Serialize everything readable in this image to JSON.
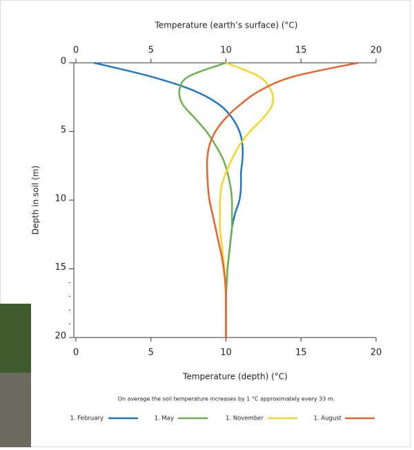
{
  "chart_data": {
    "type": "line",
    "title": "Temperature (earth’s surface) (°C)",
    "xlabel": "Temperature (depth) (°C)",
    "ylabel": "Depth in soil (m)",
    "note": "On average the soil temperature increases by 1 °C approximately every 33 m.",
    "y": [
      0,
      1,
      2,
      3,
      4,
      5,
      6,
      7,
      8,
      9,
      10,
      11,
      12,
      13,
      14,
      15,
      16,
      17,
      18,
      19,
      20
    ],
    "ylim": [
      0,
      20
    ],
    "y_inverted": true,
    "yticks": [
      0,
      5,
      10,
      15,
      20
    ],
    "yminorticks": [
      16,
      17,
      18,
      19
    ],
    "xlim": [
      0,
      20
    ],
    "xticks": [
      0,
      5,
      10,
      15,
      20
    ],
    "x2lim": [
      0,
      20
    ],
    "x2ticks": [
      0,
      5,
      10,
      15,
      20
    ],
    "series": [
      {
        "name": "1. February",
        "color": "#1f78c1",
        "values": [
          1.2,
          5,
          7.8,
          9.5,
          10.4,
          10.9,
          11.1,
          11.1,
          11.0,
          11.0,
          10.9,
          10.6,
          10.4,
          10.3,
          10.2,
          10.1,
          10.05,
          10,
          10,
          10,
          10
        ]
      },
      {
        "name": "1. May",
        "color": "#6ab04c",
        "values": [
          10,
          7.5,
          6.9,
          7.1,
          7.9,
          8.7,
          9.3,
          9.8,
          10.1,
          10.3,
          10.4,
          10.4,
          10.4,
          10.3,
          10.2,
          10.1,
          10.05,
          10,
          10,
          10,
          10
        ]
      },
      {
        "name": "1. November",
        "color": "#f7d528",
        "values": [
          10,
          12.2,
          13.0,
          13.1,
          12.5,
          11.6,
          10.9,
          10.4,
          10.0,
          9.7,
          9.6,
          9.6,
          9.6,
          9.7,
          9.8,
          9.9,
          9.95,
          10,
          10,
          10,
          10
        ]
      },
      {
        "name": "1. August",
        "color": "#e8622c",
        "values": [
          18.8,
          14.5,
          12.3,
          11.0,
          10.0,
          9.3,
          8.9,
          8.75,
          8.75,
          8.8,
          8.9,
          9.1,
          9.3,
          9.5,
          9.7,
          9.85,
          9.95,
          10,
          10,
          10,
          10
        ]
      }
    ]
  }
}
